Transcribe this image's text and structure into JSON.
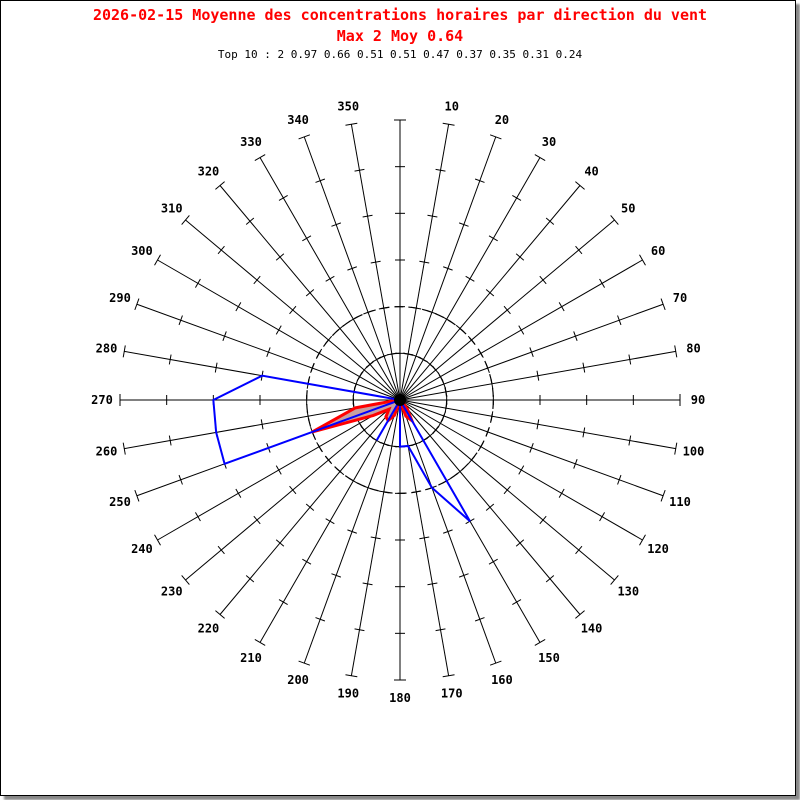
{
  "chart_data": {
    "type": "polar",
    "title": "2026-02-15 Moyenne des concentrations horaires par direction du vent",
    "subtitle": "Max 2 Moy 0.64",
    "top10": "Top 10 : 2 0.97 0.66 0.51 0.51 0.47 0.37 0.35 0.31 0.24",
    "direction_labels": [
      "10",
      "20",
      "30",
      "40",
      "50",
      "60",
      "70",
      "80",
      "90",
      "100",
      "110",
      "120",
      "130",
      "140",
      "150",
      "160",
      "170",
      "180",
      "190",
      "200",
      "210",
      "220",
      "230",
      "240",
      "250",
      "260",
      "270",
      "280",
      "290",
      "300",
      "310",
      "320",
      "330",
      "340",
      "350"
    ],
    "radial_range": [
      0,
      6
    ],
    "dashed_circles": [
      1,
      2
    ],
    "colors": {
      "primary": "#ff0000",
      "primary_fill": "#c8a0a0",
      "secondary": "#0000ff"
    },
    "red_series": [
      {
        "dir": 140,
        "value": 0.24
      },
      {
        "dir": 150,
        "value": 0.51
      },
      {
        "dir": 160,
        "value": 0.37
      },
      {
        "dir": 200,
        "value": 0.35
      },
      {
        "dir": 210,
        "value": 0.51
      },
      {
        "dir": 220,
        "value": 0.47
      },
      {
        "dir": 230,
        "value": 0.31
      },
      {
        "dir": 240,
        "value": 0.66
      },
      {
        "dir": 250,
        "value": 2
      },
      {
        "dir": 260,
        "value": 0.97
      }
    ],
    "blue_path": [
      {
        "dir": 290,
        "value": 0
      },
      {
        "dir": 280,
        "value": 3
      },
      {
        "dir": 270,
        "value": 4
      },
      {
        "dir": 260,
        "value": 4
      },
      {
        "dir": 250,
        "value": 4
      },
      {
        "dir": 250,
        "value": 2
      },
      {
        "dir": 250,
        "value": 0
      },
      {
        "dir": 210,
        "value": 1
      },
      {
        "dir": 210,
        "value": 0
      },
      {
        "dir": 180,
        "value": 1
      },
      {
        "dir": 170,
        "value": 1
      },
      {
        "dir": 160,
        "value": 2
      },
      {
        "dir": 150,
        "value": 3
      },
      {
        "dir": 150,
        "value": 0
      }
    ]
  }
}
